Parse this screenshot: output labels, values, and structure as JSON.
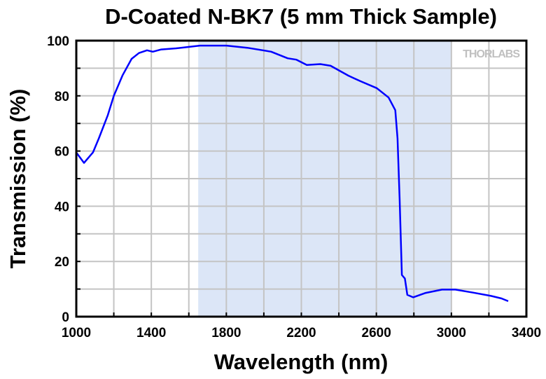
{
  "chart_data": {
    "type": "line",
    "title": "D-Coated N-BK7 (5 mm Thick Sample)",
    "xlabel": "Wavelength (nm)",
    "ylabel": "Transmission (%)",
    "xlim": [
      1000,
      3400
    ],
    "ylim": [
      0,
      100
    ],
    "xticks": [
      1000,
      1400,
      1800,
      2200,
      2600,
      3000,
      3400
    ],
    "yticks": [
      0,
      20,
      40,
      60,
      80,
      100
    ],
    "x_grid_step": 200,
    "y_grid_step": 10,
    "grid": true,
    "shaded_region": {
      "x": [
        1650,
        3000
      ],
      "color": "#dce6f7"
    },
    "watermark": "THORLABS",
    "series": [
      {
        "name": "Transmission",
        "color": "#0000ff",
        "x": [
          1000,
          1041,
          1089,
          1120,
          1168,
          1200,
          1247,
          1295,
          1334,
          1377,
          1408,
          1453,
          1532,
          1659,
          1801,
          1912,
          2039,
          2127,
          2174,
          2229,
          2301,
          2356,
          2451,
          2515,
          2602,
          2665,
          2701,
          2713,
          2724,
          2736,
          2752,
          2765,
          2796,
          2863,
          2950,
          3021,
          3116,
          3211,
          3267,
          3303
        ],
        "y": [
          59.5,
          55.7,
          59.5,
          64.6,
          73,
          80,
          87.5,
          93.4,
          95.5,
          96.5,
          96,
          96.8,
          97.2,
          98.2,
          98.2,
          97.4,
          96,
          93.6,
          93.1,
          91.2,
          91.5,
          90.9,
          87.3,
          85.3,
          82.8,
          79.4,
          74.8,
          64.6,
          42.6,
          15.1,
          13.8,
          7.9,
          7.0,
          8.6,
          9.8,
          9.8,
          8.7,
          7.5,
          6.6,
          5.6
        ]
      }
    ]
  }
}
